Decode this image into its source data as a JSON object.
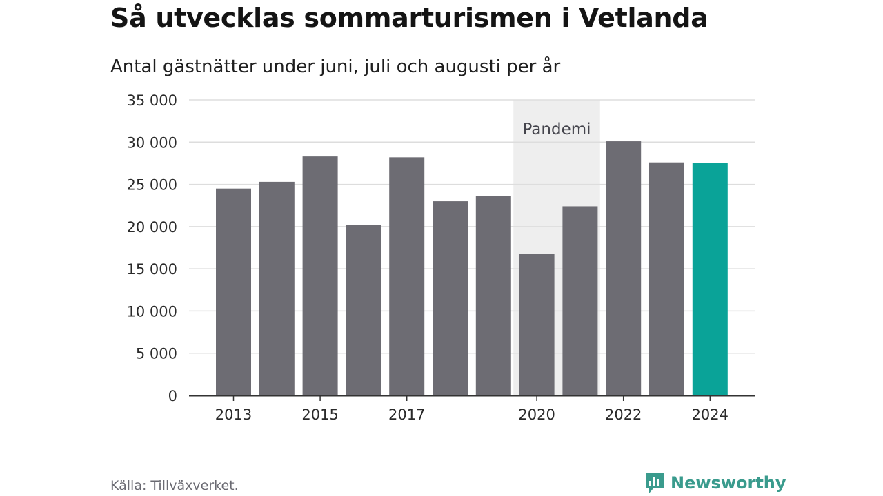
{
  "title": "Så utvecklas sommarturismen i Vetlanda",
  "subtitle": "Antal gästnätter under juni, juli och augusti per år",
  "source": "Källa: Tillväxverket.",
  "brand": "Newsworthy",
  "colors": {
    "bar": "#6d6c73",
    "highlight": "#0aa398",
    "band": "#eeeeee",
    "grid": "#dddddd",
    "axis": "#333333",
    "brand": "#3a9b8d"
  },
  "chart_data": {
    "type": "bar",
    "categories": [
      "2013",
      "2014",
      "2015",
      "2016",
      "2017",
      "2018",
      "2019",
      "2020",
      "2021",
      "2022",
      "2023",
      "2024"
    ],
    "values": [
      24500,
      25300,
      28300,
      20200,
      28200,
      23000,
      23600,
      16800,
      22400,
      30100,
      27600,
      27500
    ],
    "highlight": "2024",
    "xtick_labels": [
      "2013",
      "2015",
      "2017",
      "2020",
      "2022",
      "2024"
    ],
    "ylim": [
      0,
      35000
    ],
    "yticks": [
      0,
      5000,
      10000,
      15000,
      20000,
      25000,
      30000,
      35000
    ],
    "ytick_labels": [
      "0",
      "5 000",
      "10 000",
      "15 000",
      "20 000",
      "25 000",
      "30 000",
      "35 000"
    ],
    "band": {
      "label": "Pandemi",
      "from": "2020",
      "to": "2021"
    },
    "grid": true,
    "xlabel": "",
    "ylabel": ""
  }
}
